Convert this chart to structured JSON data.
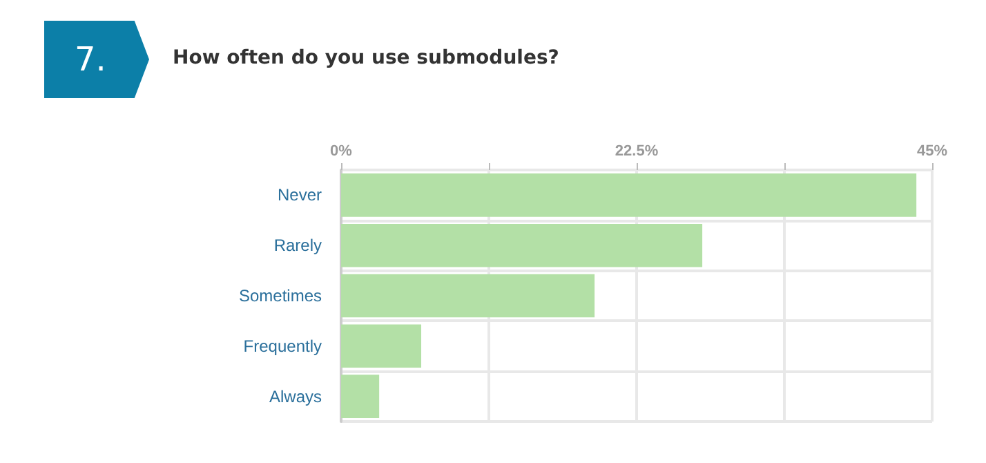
{
  "chart_data": {
    "type": "bar",
    "orientation": "horizontal",
    "title": "How often do you use submodules?",
    "annotations": [
      "7."
    ],
    "categories": [
      "Never",
      "Rarely",
      "Sometimes",
      "Frequently",
      "Always"
    ],
    "values": [
      43.8,
      27.5,
      19.3,
      6.1,
      2.9
    ],
    "color": "#b3e0a6",
    "xlim": [
      0,
      45
    ],
    "xticks": [
      {
        "value": 0,
        "label": "0%"
      },
      {
        "value": 11.25,
        "label": null
      },
      {
        "value": 22.5,
        "label": "22.5%"
      },
      {
        "value": 33.75,
        "label": null
      },
      {
        "value": 45,
        "label": "45%"
      }
    ],
    "grid": true
  }
}
